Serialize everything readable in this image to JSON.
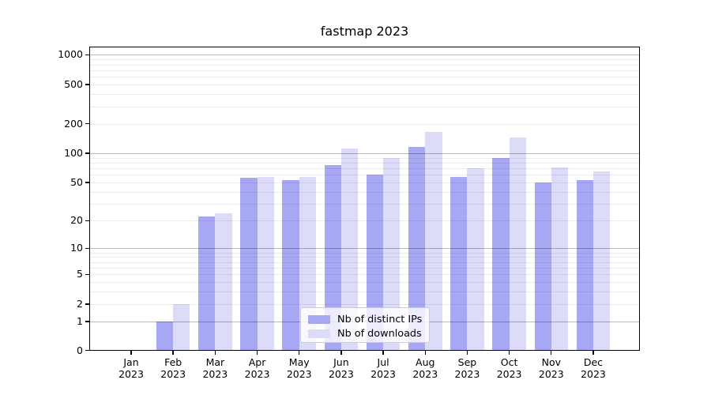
{
  "title": "fastmap 2023",
  "legend": {
    "items": [
      {
        "label": "Nb of distinct IPs",
        "color": "#a7a7f3"
      },
      {
        "label": "Nb of downloads",
        "color": "#dcdcf9"
      }
    ]
  },
  "axes": {
    "y_tick_labels": [
      "0",
      "1",
      "2",
      "5",
      "10",
      "20",
      "50",
      "100",
      "200",
      "500",
      "1000"
    ],
    "x_year": "2023"
  },
  "chart_data": {
    "type": "bar",
    "title": "fastmap 2023",
    "categories": [
      "Jan 2023",
      "Feb 2023",
      "Mar 2023",
      "Apr 2023",
      "May 2023",
      "Jun 2023",
      "Jul 2023",
      "Aug 2023",
      "Sep 2023",
      "Oct 2023",
      "Nov 2023",
      "Dec 2023"
    ],
    "series": [
      {
        "name": "Nb of distinct IPs",
        "color": "#a7a7f3",
        "values": [
          0,
          1,
          22,
          56,
          53,
          75,
          60,
          115,
          57,
          90,
          50,
          53
        ]
      },
      {
        "name": "Nb of downloads",
        "color": "#dcdcf9",
        "values": [
          0,
          2,
          24,
          57,
          57,
          112,
          90,
          165,
          70,
          145,
          72,
          65
        ]
      }
    ],
    "yscale": "log1p",
    "y_ticks": [
      0,
      1,
      2,
      5,
      10,
      20,
      50,
      100,
      200,
      500,
      1000
    ],
    "ylim": [
      0,
      1200
    ],
    "grid": true,
    "grid_major_at": [
      1,
      10,
      100,
      1000
    ],
    "legend_position": "lower-center-inside"
  }
}
